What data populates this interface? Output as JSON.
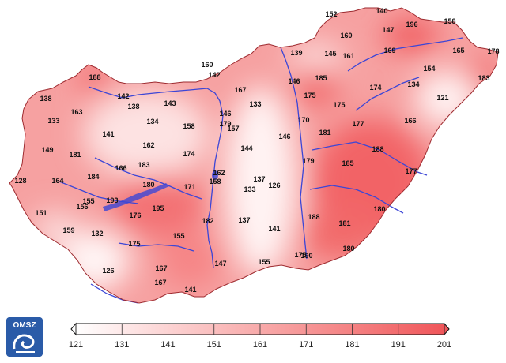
{
  "logo": {
    "text": "OMSZ",
    "icon": "omsz-logo-icon",
    "color": "#2a5ba8"
  },
  "legend": {
    "ticks": [
      "121",
      "131",
      "141",
      "151",
      "161",
      "171",
      "181",
      "191",
      "201"
    ],
    "min_color": "#ffffff",
    "max_color": "#f0565a"
  },
  "stations": [
    {
      "label": "152"
    },
    {
      "label": "140"
    },
    {
      "label": "196"
    },
    {
      "label": "158"
    },
    {
      "label": "160"
    },
    {
      "label": "147"
    },
    {
      "label": "165"
    },
    {
      "label": "178"
    },
    {
      "label": "169"
    },
    {
      "label": "154"
    },
    {
      "label": "183"
    },
    {
      "label": "139"
    },
    {
      "label": "145"
    },
    {
      "label": "161"
    },
    {
      "label": "134"
    },
    {
      "label": "160"
    },
    {
      "label": "142"
    },
    {
      "label": "188"
    },
    {
      "label": "185"
    },
    {
      "label": "146"
    },
    {
      "label": "174"
    },
    {
      "label": "121"
    },
    {
      "label": "175"
    },
    {
      "label": "167"
    },
    {
      "label": "133"
    },
    {
      "label": "142"
    },
    {
      "label": "138"
    },
    {
      "label": "175"
    },
    {
      "label": "166"
    },
    {
      "label": "138"
    },
    {
      "label": "143"
    },
    {
      "label": "163"
    },
    {
      "label": "146"
    },
    {
      "label": "170"
    },
    {
      "label": "177"
    },
    {
      "label": "133"
    },
    {
      "label": "134"
    },
    {
      "label": "158"
    },
    {
      "label": "179"
    },
    {
      "label": "157"
    },
    {
      "label": "181"
    },
    {
      "label": "141"
    },
    {
      "label": "146"
    },
    {
      "label": "162"
    },
    {
      "label": "144"
    },
    {
      "label": "188"
    },
    {
      "label": "149"
    },
    {
      "label": "181"
    },
    {
      "label": "174"
    },
    {
      "label": "179"
    },
    {
      "label": "185"
    },
    {
      "label": "166"
    },
    {
      "label": "183"
    },
    {
      "label": "177"
    },
    {
      "label": "184"
    },
    {
      "label": "162"
    },
    {
      "label": "128"
    },
    {
      "label": "164"
    },
    {
      "label": "180"
    },
    {
      "label": "158"
    },
    {
      "label": "171"
    },
    {
      "label": "137"
    },
    {
      "label": "126"
    },
    {
      "label": "133"
    },
    {
      "label": "155"
    },
    {
      "label": "193"
    },
    {
      "label": "156"
    },
    {
      "label": "151"
    },
    {
      "label": "176"
    },
    {
      "label": "195"
    },
    {
      "label": "188"
    },
    {
      "label": "180"
    },
    {
      "label": "137"
    },
    {
      "label": "182"
    },
    {
      "label": "181"
    },
    {
      "label": "159"
    },
    {
      "label": "132"
    },
    {
      "label": "141"
    },
    {
      "label": "155"
    },
    {
      "label": "175"
    },
    {
      "label": "180"
    },
    {
      "label": "155"
    },
    {
      "label": "175"
    },
    {
      "label": "190"
    },
    {
      "label": "147"
    },
    {
      "label": "126"
    },
    {
      "label": "167"
    },
    {
      "label": "167"
    },
    {
      "label": "141"
    }
  ]
}
